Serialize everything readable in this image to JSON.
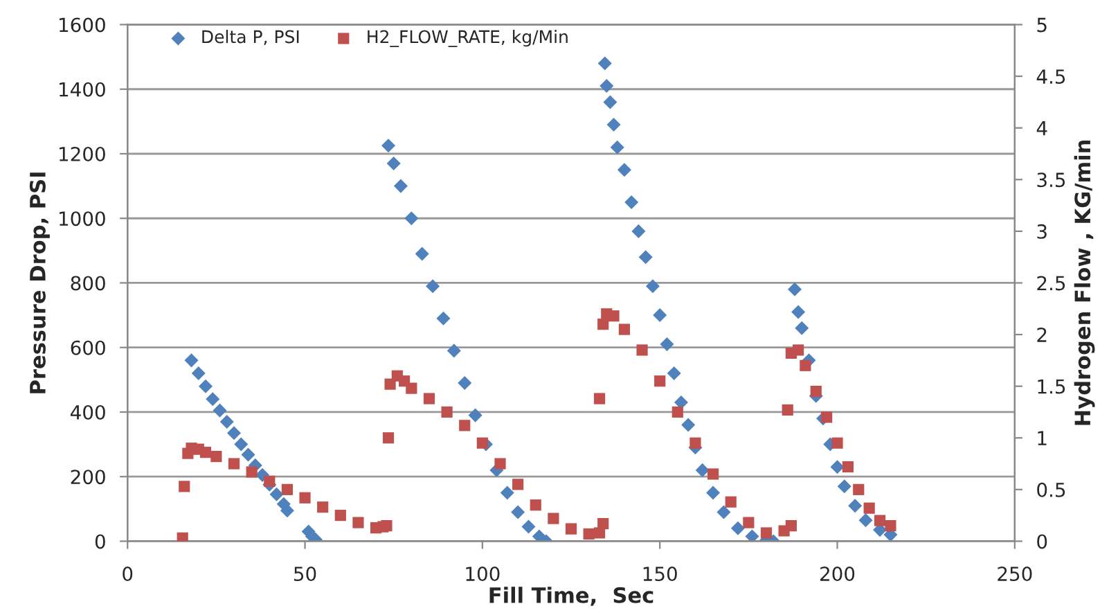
{
  "chart_data": {
    "type": "scatter",
    "xlabel": "Fill Time,  Sec",
    "ylabel": "Pressure Drop, PSI",
    "y2label": "Hydrogen Flow , KG/min",
    "xlim": [
      0,
      250
    ],
    "xticks": [
      0,
      50,
      100,
      150,
      200,
      250
    ],
    "ylim": [
      0,
      1600
    ],
    "yticks": [
      0,
      200,
      400,
      600,
      800,
      1000,
      1200,
      1400,
      1600
    ],
    "y2lim": [
      0,
      5
    ],
    "y2ticks": [
      0,
      0.5,
      1,
      1.5,
      2,
      2.5,
      3,
      3.5,
      4,
      4.5,
      5
    ],
    "grid": "y",
    "legend": "top left",
    "series": [
      {
        "name": "Delta P, PSI",
        "color": "#4f81bd",
        "marker": "diamond",
        "axis": "y",
        "x": [
          18,
          20,
          22,
          24,
          26,
          28,
          30,
          32,
          34,
          36,
          38,
          40,
          42,
          44,
          45,
          51,
          52,
          53,
          73.5,
          75,
          77,
          80,
          83,
          86,
          89,
          92,
          95,
          98,
          101,
          104,
          107,
          110,
          113,
          116,
          118,
          134.5,
          135,
          136,
          137,
          138,
          140,
          142,
          144,
          146,
          148,
          150,
          152,
          154,
          156,
          158,
          160,
          162,
          165,
          168,
          172,
          176,
          180,
          182,
          188,
          189,
          190,
          192,
          194,
          196,
          198,
          200,
          202,
          205,
          208,
          212,
          215
        ],
        "values": [
          560,
          520,
          480,
          440,
          405,
          370,
          335,
          300,
          268,
          235,
          205,
          175,
          145,
          115,
          95,
          30,
          15,
          5,
          1225,
          1170,
          1100,
          1000,
          890,
          790,
          690,
          590,
          490,
          390,
          300,
          220,
          150,
          90,
          45,
          15,
          0,
          1480,
          1410,
          1360,
          1290,
          1220,
          1150,
          1050,
          960,
          880,
          790,
          700,
          610,
          520,
          430,
          360,
          290,
          220,
          150,
          90,
          40,
          15,
          3,
          0,
          780,
          710,
          660,
          560,
          450,
          380,
          300,
          230,
          170,
          110,
          65,
          35,
          20
        ]
      },
      {
        "name": "H2_FLOW_RATE, kg/Min",
        "color": "#c0504d",
        "marker": "square",
        "axis": "y2",
        "x": [
          15.5,
          16,
          17,
          18,
          20,
          22,
          25,
          30,
          35,
          40,
          45,
          50,
          55,
          60,
          65,
          70,
          72,
          73,
          73.5,
          74,
          76,
          78,
          80,
          85,
          90,
          95,
          100,
          105,
          110,
          115,
          120,
          125,
          130,
          133,
          134,
          133,
          134,
          135,
          137,
          140,
          145,
          150,
          155,
          160,
          165,
          170,
          175,
          180,
          185,
          187,
          186,
          187,
          189,
          191,
          194,
          197,
          200,
          203,
          206,
          209,
          212,
          215
        ],
        "values": [
          0.03,
          0.53,
          0.85,
          0.9,
          0.89,
          0.86,
          0.82,
          0.75,
          0.67,
          0.58,
          0.5,
          0.42,
          0.33,
          0.25,
          0.18,
          0.13,
          0.14,
          0.15,
          1.0,
          1.52,
          1.6,
          1.55,
          1.48,
          1.38,
          1.25,
          1.12,
          0.95,
          0.75,
          0.55,
          0.35,
          0.22,
          0.12,
          0.07,
          0.08,
          0.17,
          1.38,
          2.1,
          2.2,
          2.18,
          2.05,
          1.85,
          1.55,
          1.25,
          0.95,
          0.65,
          0.38,
          0.18,
          0.08,
          0.1,
          0.15,
          1.27,
          1.82,
          1.85,
          1.7,
          1.45,
          1.2,
          0.95,
          0.72,
          0.5,
          0.32,
          0.2,
          0.15
        ]
      }
    ]
  }
}
